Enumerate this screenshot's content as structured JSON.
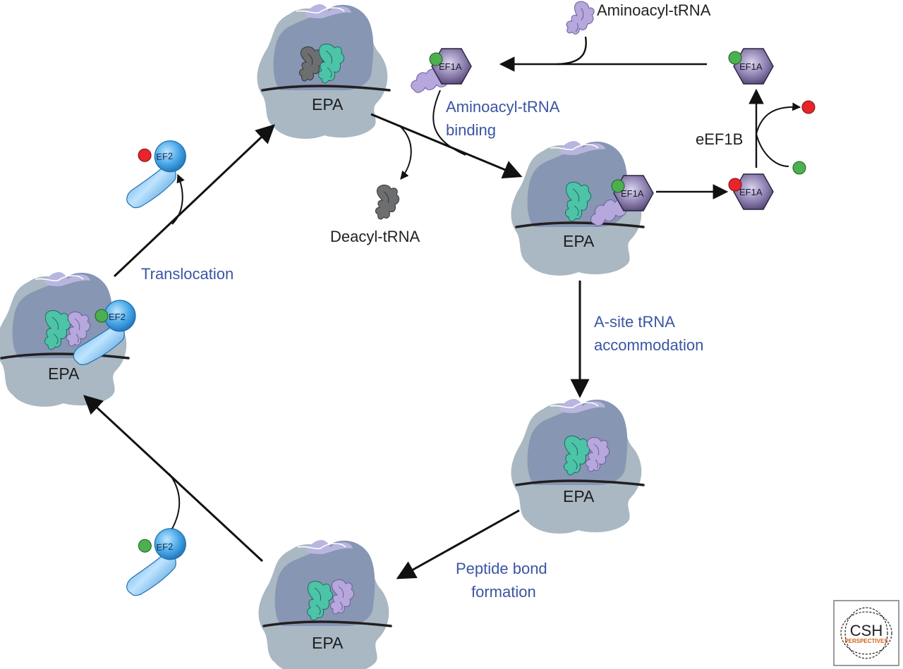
{
  "labels": {
    "aminoacyl_trna": "Aminoacyl-tRNA",
    "aminoacyl_binding_line1": "Aminoacyl-tRNA",
    "aminoacyl_binding_line2": "binding",
    "deacyl_trna": "Deacyl-tRNA",
    "ef1b": "eEF1B",
    "translocation": "Translocation",
    "a_site_line1": "A-site tRNA",
    "a_site_line2": "accommodation",
    "peptide_line1": "Peptide bond",
    "peptide_line2": "formation"
  },
  "factors": {
    "ef1a": "EF1A",
    "ef2": "EF2"
  },
  "ribosome_site_label": "EPA",
  "logo": {
    "top": "CSH",
    "bottom": "PERSPECTIVES"
  },
  "colors": {
    "ribosome_large": "#a9b8c2",
    "ribosome_small": "#8796b3",
    "ribosome_cap": "#b8b6e0",
    "trna_green": "#4dc3a8",
    "trna_purple": "#b6a7dc",
    "trna_gray": "#6d6e70",
    "ef2_blue": "#3aa0e0",
    "ef1a_purple": "#6e6190",
    "gtp_green": "#4caf50",
    "gdp_red": "#e8252a",
    "label_blue": "#3a55a3"
  }
}
